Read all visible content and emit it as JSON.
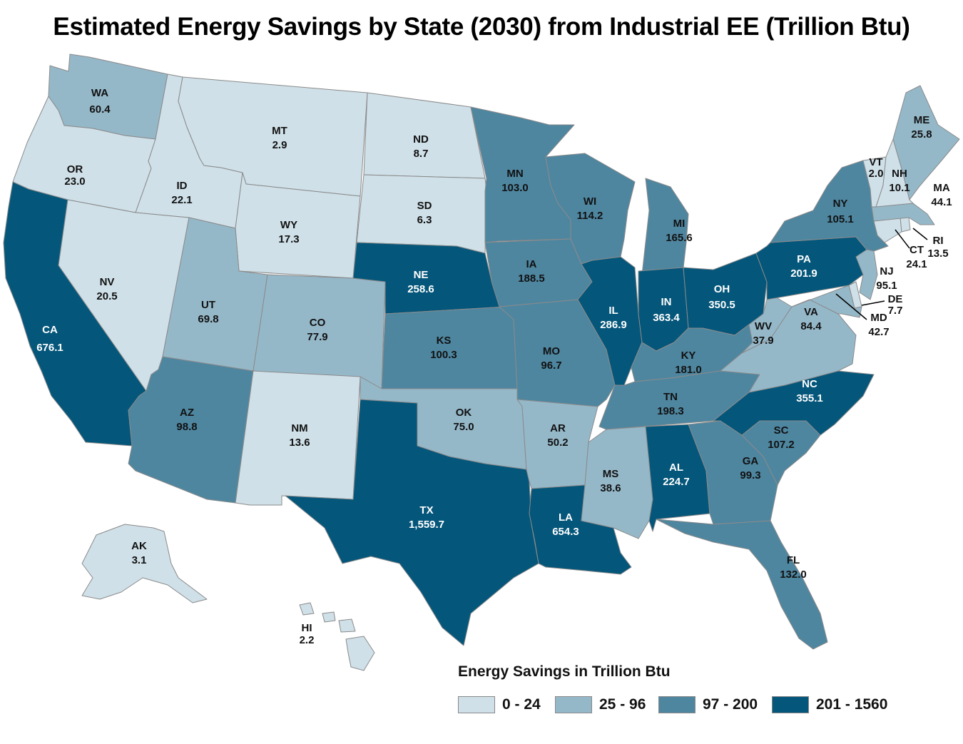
{
  "title": "Estimated Energy Savings by State (2030) from Industrial EE (Trillion Btu)",
  "colors": {
    "bin0": "#cfe0e8",
    "bin1": "#95b8c9",
    "bin2": "#4e86a0",
    "bin3": "#04567a",
    "border": "#8a8a8a",
    "label_dark": "#111111",
    "label_light": "#ffffff"
  },
  "legend": {
    "title": "Energy Savings in Trillion Btu",
    "items": [
      {
        "label": "0 - 24",
        "color": "#cfe0e8"
      },
      {
        "label": "25 - 96",
        "color": "#95b8c9"
      },
      {
        "label": "97 - 200",
        "color": "#4e86a0"
      },
      {
        "label": "201 - 1560",
        "color": "#04567a"
      }
    ]
  },
  "states": {
    "WA": {
      "abbr": "WA",
      "value": "60.4",
      "bin": 1
    },
    "OR": {
      "abbr": "OR",
      "value": "23.0",
      "bin": 0
    },
    "CA": {
      "abbr": "CA",
      "value": "676.1",
      "bin": 3
    },
    "ID": {
      "abbr": "ID",
      "value": "22.1",
      "bin": 0
    },
    "NV": {
      "abbr": "NV",
      "value": "20.5",
      "bin": 0
    },
    "MT": {
      "abbr": "MT",
      "value": "2.9",
      "bin": 0
    },
    "WY": {
      "abbr": "WY",
      "value": "17.3",
      "bin": 0
    },
    "UT": {
      "abbr": "UT",
      "value": "69.8",
      "bin": 1
    },
    "AZ": {
      "abbr": "AZ",
      "value": "98.8",
      "bin": 2
    },
    "CO": {
      "abbr": "CO",
      "value": "77.9",
      "bin": 1
    },
    "NM": {
      "abbr": "NM",
      "value": "13.6",
      "bin": 0
    },
    "ND": {
      "abbr": "ND",
      "value": "8.7",
      "bin": 0
    },
    "SD": {
      "abbr": "SD",
      "value": "6.3",
      "bin": 0
    },
    "NE": {
      "abbr": "NE",
      "value": "258.6",
      "bin": 3
    },
    "KS": {
      "abbr": "KS",
      "value": "100.3",
      "bin": 2
    },
    "OK": {
      "abbr": "OK",
      "value": "75.0",
      "bin": 1
    },
    "TX": {
      "abbr": "TX",
      "value": "1,559.7",
      "bin": 3
    },
    "MN": {
      "abbr": "MN",
      "value": "103.0",
      "bin": 2
    },
    "IA": {
      "abbr": "IA",
      "value": "188.5",
      "bin": 2
    },
    "MO": {
      "abbr": "MO",
      "value": "96.7",
      "bin": 2
    },
    "AR": {
      "abbr": "AR",
      "value": "50.2",
      "bin": 1
    },
    "LA": {
      "abbr": "LA",
      "value": "654.3",
      "bin": 3
    },
    "WI": {
      "abbr": "WI",
      "value": "114.2",
      "bin": 2
    },
    "IL": {
      "abbr": "IL",
      "value": "286.9",
      "bin": 3
    },
    "MI": {
      "abbr": "MI",
      "value": "165.6",
      "bin": 2
    },
    "IN": {
      "abbr": "IN",
      "value": "363.4",
      "bin": 3
    },
    "OH": {
      "abbr": "OH",
      "value": "350.5",
      "bin": 3
    },
    "KY": {
      "abbr": "KY",
      "value": "181.0",
      "bin": 2
    },
    "TN": {
      "abbr": "TN",
      "value": "198.3",
      "bin": 2
    },
    "MS": {
      "abbr": "MS",
      "value": "38.6",
      "bin": 1
    },
    "AL": {
      "abbr": "AL",
      "value": "224.7",
      "bin": 3
    },
    "GA": {
      "abbr": "GA",
      "value": "99.3",
      "bin": 2
    },
    "FL": {
      "abbr": "FL",
      "value": "132.0",
      "bin": 2
    },
    "SC": {
      "abbr": "SC",
      "value": "107.2",
      "bin": 2
    },
    "NC": {
      "abbr": "NC",
      "value": "355.1",
      "bin": 3
    },
    "VA": {
      "abbr": "VA",
      "value": "84.4",
      "bin": 1
    },
    "WV": {
      "abbr": "WV",
      "value": "37.9",
      "bin": 1
    },
    "PA": {
      "abbr": "PA",
      "value": "201.9",
      "bin": 3
    },
    "NY": {
      "abbr": "NY",
      "value": "105.1",
      "bin": 2
    },
    "NJ": {
      "abbr": "NJ",
      "value": "95.1",
      "bin": 1
    },
    "DE": {
      "abbr": "DE",
      "value": "7.7",
      "bin": 0
    },
    "MD": {
      "abbr": "MD",
      "value": "42.7",
      "bin": 1
    },
    "CT": {
      "abbr": "CT",
      "value": "24.1",
      "bin": 0
    },
    "RI": {
      "abbr": "RI",
      "value": "13.5",
      "bin": 0
    },
    "MA": {
      "abbr": "MA",
      "value": "44.1",
      "bin": 1
    },
    "VT": {
      "abbr": "VT",
      "value": "2.0",
      "bin": 0
    },
    "NH": {
      "abbr": "NH",
      "value": "10.1",
      "bin": 0
    },
    "ME": {
      "abbr": "ME",
      "value": "25.8",
      "bin": 1
    },
    "AK": {
      "abbr": "AK",
      "value": "3.1",
      "bin": 0
    },
    "HI": {
      "abbr": "HI",
      "value": "2.2",
      "bin": 0
    }
  }
}
